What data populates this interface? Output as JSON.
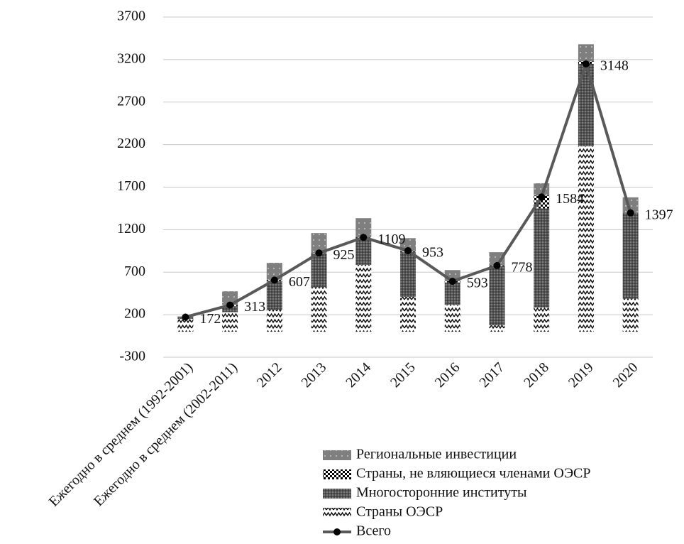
{
  "chart_data": {
    "type": "bar",
    "categories": [
      "Ежегодно в среднем (1992-2001)",
      "Ежегодно в среднем (2002-2011)",
      "2012",
      "2013",
      "2014",
      "2015",
      "2016",
      "2017",
      "2018",
      "2019",
      "2020"
    ],
    "series": [
      {
        "name": "Страны ОЭСР",
        "color": "#ffffff",
        "values": [
          150,
          230,
          260,
          525,
          785,
          410,
          315,
          75,
          285,
          2180,
          390
        ]
      },
      {
        "name": "Многосторонние институты",
        "color": "#555555",
        "values": [
          20,
          70,
          340,
          395,
          315,
          525,
          265,
          695,
          1165,
          970,
          1005
        ]
      },
      {
        "name": "Страны, не вляющиеся членами ОЭСР",
        "color": "#000000",
        "values": [
          0,
          15,
          10,
          5,
          10,
          15,
          15,
          10,
          150,
          30,
          0
        ]
      },
      {
        "name": "Региональные инвестиции",
        "color": "#7f7f7f",
        "values": [
          10,
          160,
          200,
          235,
          225,
          150,
          130,
          155,
          145,
          200,
          185
        ]
      },
      {
        "name": "Всего",
        "type": "line",
        "color": "#595959",
        "values": [
          172,
          313,
          607,
          925,
          1109,
          953,
          593,
          778,
          1584,
          3148,
          1397
        ]
      }
    ],
    "ylim": [
      -300,
      3700
    ],
    "yticks": [
      -300,
      200,
      700,
      1200,
      1700,
      2200,
      2700,
      3200,
      3700
    ],
    "grid": true
  }
}
